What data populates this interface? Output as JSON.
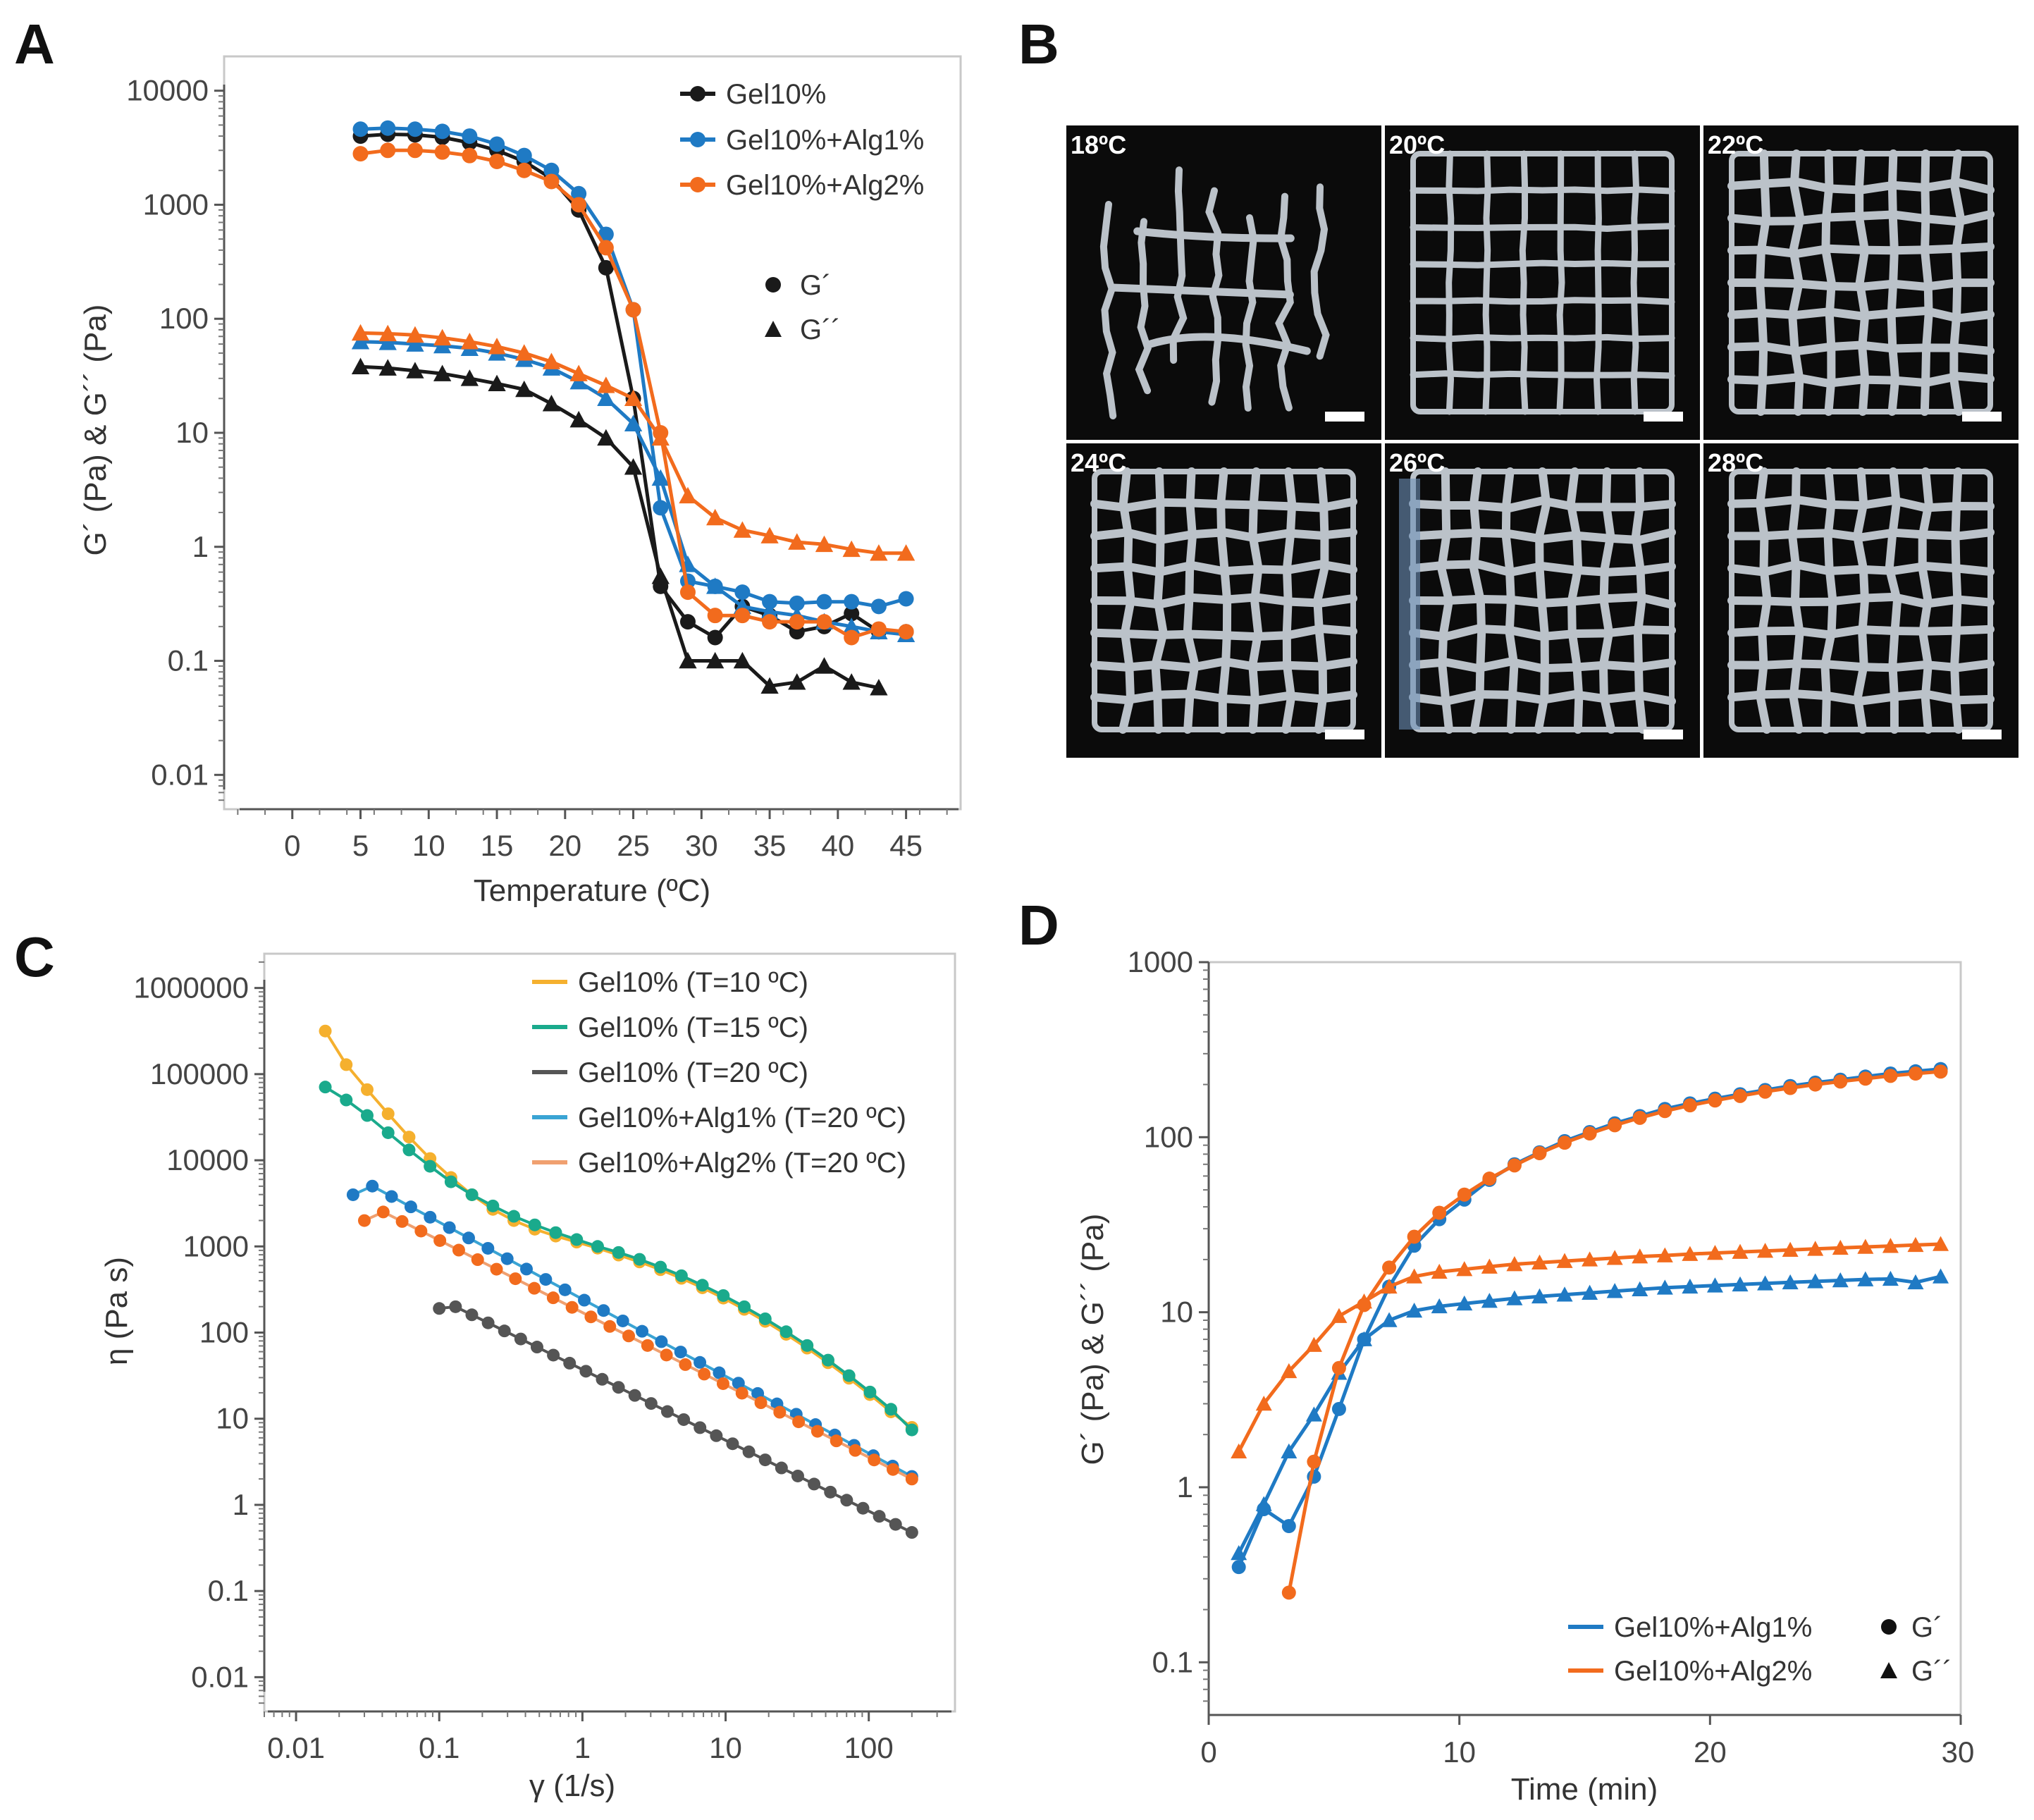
{
  "colors": {
    "black": "#1a1a1a",
    "blue": "#1f7ac4",
    "orange": "#f26b1d",
    "yellow": "#f5b02e",
    "green": "#1aaa8c",
    "dark_gray": "#555555",
    "light_blue": "#3aa4d4",
    "light_orange": "#f0a070"
  },
  "chart_data": [
    {
      "panel": "A",
      "type": "line",
      "xlabel": "Temperature (ºC)",
      "ylabel": "G´ (Pa) & G´´ (Pa)",
      "xlim": [
        -5,
        49
      ],
      "ylim": [
        0.005,
        20000
      ],
      "yscale": "log",
      "xticks": [
        0,
        5,
        10,
        15,
        20,
        25,
        30,
        35,
        40,
        45
      ],
      "yticks": [
        0.01,
        0.1,
        1,
        10,
        100,
        1000,
        10000
      ],
      "ytick_labels": [
        "0.01",
        "0.1",
        "1",
        "10",
        "100",
        "1000",
        "10000"
      ],
      "legend": {
        "position": "top-right",
        "series_labels": [
          "Gel10%",
          "Gel10%+Alg1%",
          "Gel10%+Alg2%"
        ],
        "marker_labels": [
          "G´",
          "G´´"
        ]
      },
      "x": [
        5,
        7,
        9,
        11,
        13,
        15,
        17,
        19,
        21,
        23,
        25,
        27,
        29,
        31,
        33,
        35,
        37,
        39,
        41,
        43,
        45
      ],
      "series": [
        {
          "name": "Gel10%",
          "measure": "G´",
          "color_key": "black",
          "marker": "circle",
          "values": [
            4000,
            4150,
            4100,
            3900,
            3500,
            3000,
            2400,
            1700,
            900,
            280,
            20,
            0.45,
            0.22,
            0.16,
            0.3,
            0.25,
            0.18,
            0.2,
            0.26,
            0.18,
            0.18
          ]
        },
        {
          "name": "Gel10%",
          "measure": "G´´",
          "color_key": "black",
          "marker": "triangle",
          "values": [
            38,
            37,
            35,
            33,
            30,
            27,
            24,
            18,
            13,
            9,
            5,
            0.55,
            0.1,
            0.1,
            0.1,
            0.06,
            0.065,
            0.09,
            0.065,
            0.058,
            null
          ]
        },
        {
          "name": "Gel10%+Alg1%",
          "measure": "G´",
          "color_key": "blue",
          "marker": "circle",
          "values": [
            4600,
            4700,
            4600,
            4400,
            4000,
            3400,
            2700,
            2000,
            1250,
            550,
            120,
            2.2,
            0.5,
            0.45,
            0.4,
            0.33,
            0.32,
            0.33,
            0.33,
            0.3,
            0.35
          ]
        },
        {
          "name": "Gel10%+Alg1%",
          "measure": "G´´",
          "color_key": "blue",
          "marker": "triangle",
          "values": [
            63,
            62,
            60,
            58,
            55,
            50,
            44,
            37,
            28,
            20,
            12,
            4,
            0.7,
            0.45,
            0.3,
            0.27,
            0.25,
            0.22,
            0.2,
            0.18,
            0.17
          ]
        },
        {
          "name": "Gel10%+Alg2%",
          "measure": "G´",
          "color_key": "orange",
          "marker": "circle",
          "values": [
            2800,
            3000,
            3000,
            2900,
            2700,
            2400,
            2000,
            1600,
            1000,
            420,
            120,
            10,
            0.4,
            0.25,
            0.25,
            0.22,
            0.22,
            0.22,
            0.16,
            0.19,
            0.18
          ]
        },
        {
          "name": "Gel10%+Alg2%",
          "measure": "G´´",
          "color_key": "orange",
          "marker": "triangle",
          "values": [
            75,
            74,
            72,
            68,
            63,
            57,
            50,
            42,
            33,
            26,
            20,
            9,
            2.8,
            1.8,
            1.4,
            1.25,
            1.1,
            1.05,
            0.95,
            0.88,
            0.88
          ]
        }
      ]
    },
    {
      "panel": "C",
      "type": "line",
      "xlabel": "γ (1/s)",
      "ylabel": "η (Pa s)",
      "xscale": "log",
      "yscale": "log",
      "xlim": [
        0.006,
        400
      ],
      "ylim": [
        0.004,
        2500000
      ],
      "xticks": [
        0.01,
        0.1,
        1,
        10,
        100
      ],
      "xtick_labels": [
        "0.01",
        "0.1",
        "1",
        "10",
        "100"
      ],
      "yticks": [
        0.01,
        0.1,
        1,
        10,
        100,
        1000,
        10000,
        100000,
        1000000
      ],
      "ytick_labels": [
        "0.01",
        "0.1",
        "1",
        "10",
        "100",
        "1000",
        "10000",
        "100000",
        "1000000"
      ],
      "legend": {
        "position": "top-right"
      },
      "series": [
        {
          "name": "Gel10% (T=10 ºC)",
          "color_key": "yellow",
          "x_start": 0.016,
          "x_end": 200,
          "log_y": [
            5.5,
            5.11,
            4.82,
            4.54,
            4.27,
            4.02,
            3.8,
            3.6,
            3.43,
            3.3,
            3.2,
            3.12,
            3.05,
            2.98,
            2.9,
            2.82,
            2.73,
            2.63,
            2.52,
            2.4,
            2.27,
            2.13,
            1.98,
            1.82,
            1.65,
            1.47,
            1.28,
            1.08,
            0.9
          ]
        },
        {
          "name": "Gel10% (T=15 ºC)",
          "color_key": "green",
          "x_start": 0.016,
          "x_end": 200,
          "log_y": [
            4.85,
            4.7,
            4.52,
            4.32,
            4.12,
            3.93,
            3.75,
            3.6,
            3.47,
            3.35,
            3.25,
            3.16,
            3.08,
            3.0,
            2.93,
            2.85,
            2.76,
            2.66,
            2.55,
            2.43,
            2.3,
            2.16,
            2.01,
            1.85,
            1.68,
            1.5,
            1.31,
            1.11,
            0.87
          ]
        },
        {
          "name": "Gel10% (T=20 ºC)",
          "color_key": "dark_gray",
          "x_start": 0.1,
          "x_end": 200,
          "log_y_start": 2.28,
          "log_y_end": -0.32,
          "log_y_peak": 2.3
        },
        {
          "name": "Gel10%+Alg1% (T=20 ºC)",
          "color_key": "light_blue",
          "marker_color_key": "blue",
          "x_start": 0.025,
          "x_end": 200,
          "log_y_start": 3.6,
          "log_y_end": 0.33,
          "log_y_peak": 3.7
        },
        {
          "name": "Gel10%+Alg2% (T=20 ºC)",
          "color_key": "light_orange",
          "marker_color_key": "orange",
          "x_start": 0.03,
          "x_end": 200,
          "log_y_start": 3.3,
          "log_y_end": 0.3,
          "log_y_peak": 3.4
        }
      ]
    },
    {
      "panel": "D",
      "type": "line",
      "xlabel": "Time (min)",
      "ylabel": "G´ (Pa) & G´´ (Pa)",
      "yscale": "log",
      "xlim": [
        0,
        30
      ],
      "ylim": [
        0.05,
        1000
      ],
      "xticks": [
        0,
        10,
        20,
        30
      ],
      "yticks": [
        0.1,
        1,
        10,
        100,
        1000
      ],
      "ytick_labels": [
        "0.1",
        "1",
        "10",
        "100",
        "1000"
      ],
      "legend": {
        "position": "bottom-right",
        "series_labels": [
          "Gel10%+Alg1%",
          "Gel10%+Alg2%"
        ],
        "marker_labels": [
          "G´",
          "G´´"
        ]
      },
      "series": [
        {
          "name": "Gel10%+Alg1%",
          "measure": "G´",
          "color_key": "blue",
          "marker": "circle",
          "x": [
            1.2,
            2.2,
            3.2,
            4.2,
            5.2,
            6.2,
            7.2,
            8.2,
            9.2,
            10.2,
            11.2,
            12.2,
            13.2,
            14.2,
            15.2,
            16.2,
            17.2,
            18.2,
            19.2,
            20.2,
            21.2,
            22.2,
            23.2,
            24.2,
            25.2,
            26.2,
            27.2,
            28.2,
            29.2
          ],
          "values": [
            0.35,
            0.75,
            0.6,
            1.15,
            2.8,
            7,
            14,
            24,
            34,
            44,
            57,
            70,
            82,
            95,
            107,
            120,
            132,
            145,
            156,
            166,
            176,
            186,
            196,
            205,
            213,
            222,
            231,
            238,
            245
          ]
        },
        {
          "name": "Gel10%+Alg1%",
          "measure": "G´´",
          "color_key": "blue",
          "marker": "triangle",
          "x": [
            1.2,
            2.2,
            3.2,
            4.2,
            5.2,
            6.2,
            7.2,
            8.2,
            9.2,
            10.2,
            11.2,
            12.2,
            13.2,
            14.2,
            15.2,
            16.2,
            17.2,
            18.2,
            19.2,
            20.2,
            21.2,
            22.2,
            23.2,
            24.2,
            25.2,
            26.2,
            27.2,
            28.2,
            29.2
          ],
          "values": [
            0.42,
            0.8,
            1.6,
            2.6,
            4.5,
            7,
            9,
            10.2,
            10.8,
            11.2,
            11.6,
            12,
            12.3,
            12.6,
            12.9,
            13.2,
            13.5,
            13.8,
            14,
            14.2,
            14.4,
            14.6,
            14.8,
            15,
            15.2,
            15.4,
            15.5,
            14.8,
            16
          ]
        },
        {
          "name": "Gel10%+Alg2%",
          "measure": "G´",
          "color_key": "orange",
          "marker": "circle",
          "x": [
            3.2,
            4.2,
            5.2,
            6.2,
            7.2,
            8.2,
            9.2,
            10.2,
            11.2,
            12.2,
            13.2,
            14.2,
            15.2,
            16.2,
            17.2,
            18.2,
            19.2,
            20.2,
            21.2,
            22.2,
            23.2,
            24.2,
            25.2,
            26.2,
            27.2,
            28.2,
            29.2
          ],
          "values": [
            0.25,
            1.4,
            4.8,
            11,
            18,
            27,
            37,
            47,
            58,
            69,
            81,
            93,
            105,
            117,
            129,
            141,
            152,
            162,
            172,
            182,
            191,
            200,
            208,
            216,
            224,
            231,
            237
          ]
        },
        {
          "name": "Gel10%+Alg2%",
          "measure": "G´´",
          "color_key": "orange",
          "marker": "triangle",
          "x": [
            1.2,
            2.2,
            3.2,
            4.2,
            5.2,
            6.2,
            7.2,
            8.2,
            9.2,
            10.2,
            11.2,
            12.2,
            13.2,
            14.2,
            15.2,
            16.2,
            17.2,
            18.2,
            19.2,
            20.2,
            21.2,
            22.2,
            23.2,
            24.2,
            25.2,
            26.2,
            27.2,
            28.2,
            29.2
          ],
          "values": [
            1.6,
            3,
            4.6,
            6.5,
            9.5,
            11.5,
            14,
            16,
            17,
            17.6,
            18.2,
            18.8,
            19.2,
            19.6,
            20,
            20.4,
            20.8,
            21.1,
            21.5,
            21.8,
            22.1,
            22.4,
            22.7,
            23,
            23.3,
            23.6,
            23.9,
            24.2,
            24.5
          ]
        }
      ]
    }
  ],
  "panels": {
    "A": {
      "letter": "A"
    },
    "B": {
      "letter": "B",
      "photos": [
        {
          "label": "18ºC",
          "grid": "broken"
        },
        {
          "label": "20ºC",
          "grid": "regular"
        },
        {
          "label": "22ºC",
          "grid": "fine"
        },
        {
          "label": "24ºC",
          "grid": "fine"
        },
        {
          "label": "26ºC",
          "grid": "fine"
        },
        {
          "label": "28ºC",
          "grid": "fine"
        }
      ]
    },
    "C": {
      "letter": "C"
    },
    "D": {
      "letter": "D"
    }
  }
}
